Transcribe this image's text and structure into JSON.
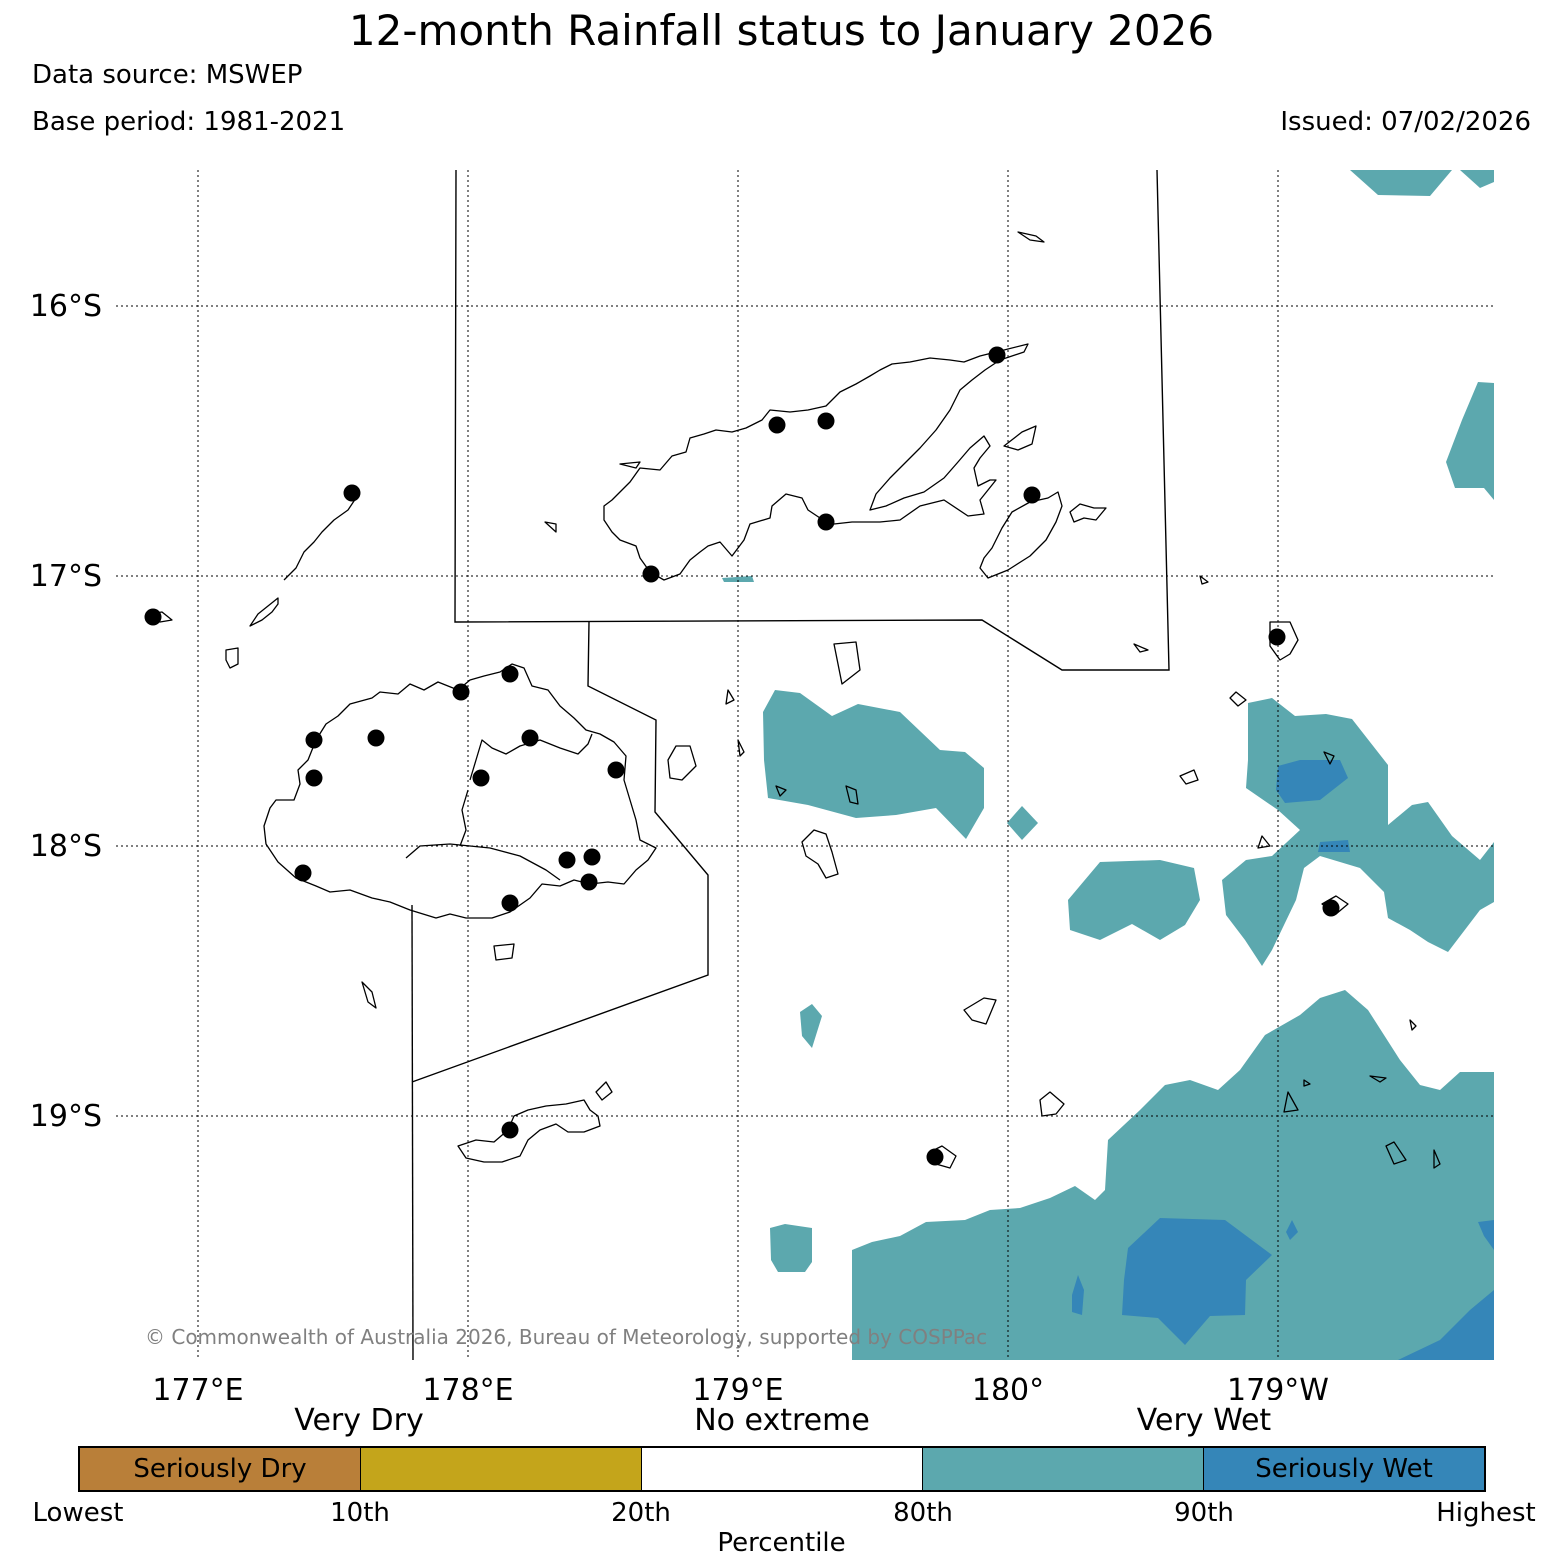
{
  "title": "12-month Rainfall status to January 2026",
  "data_source": "Data source: MSWEP",
  "base_period": "Base period: 1981-2021",
  "issued": "Issued: 07/02/2026",
  "copyright": "© Commonwealth of Australia 2026, Bureau of Meteorology, supported by COSPPac",
  "latitude_labels": [
    "16°S",
    "17°S",
    "18°S",
    "19°S"
  ],
  "longitude_labels": [
    "177°E",
    "178°E",
    "179°E",
    "180°",
    "179°W"
  ],
  "legend": {
    "group_headers": [
      "Very Dry",
      "No extreme",
      "Very Wet"
    ],
    "categories": [
      {
        "label": "Seriously Dry",
        "color": "#b97f39"
      },
      {
        "label": "",
        "color": "#c4a51b"
      },
      {
        "label": "",
        "color": "#ffffff"
      },
      {
        "label": "",
        "color": "#5ca8ae"
      },
      {
        "label": "Seriously Wet",
        "color": "#3586b8"
      }
    ],
    "ticks": [
      "Lowest",
      "10th",
      "20th",
      "80th",
      "90th",
      "Highest"
    ],
    "xlabel": "Percentile"
  },
  "colors": {
    "very_wet": "#5ca8ae",
    "seriously_wet": "#3586b8",
    "land_outline": "#000000",
    "station": "#000000"
  }
}
